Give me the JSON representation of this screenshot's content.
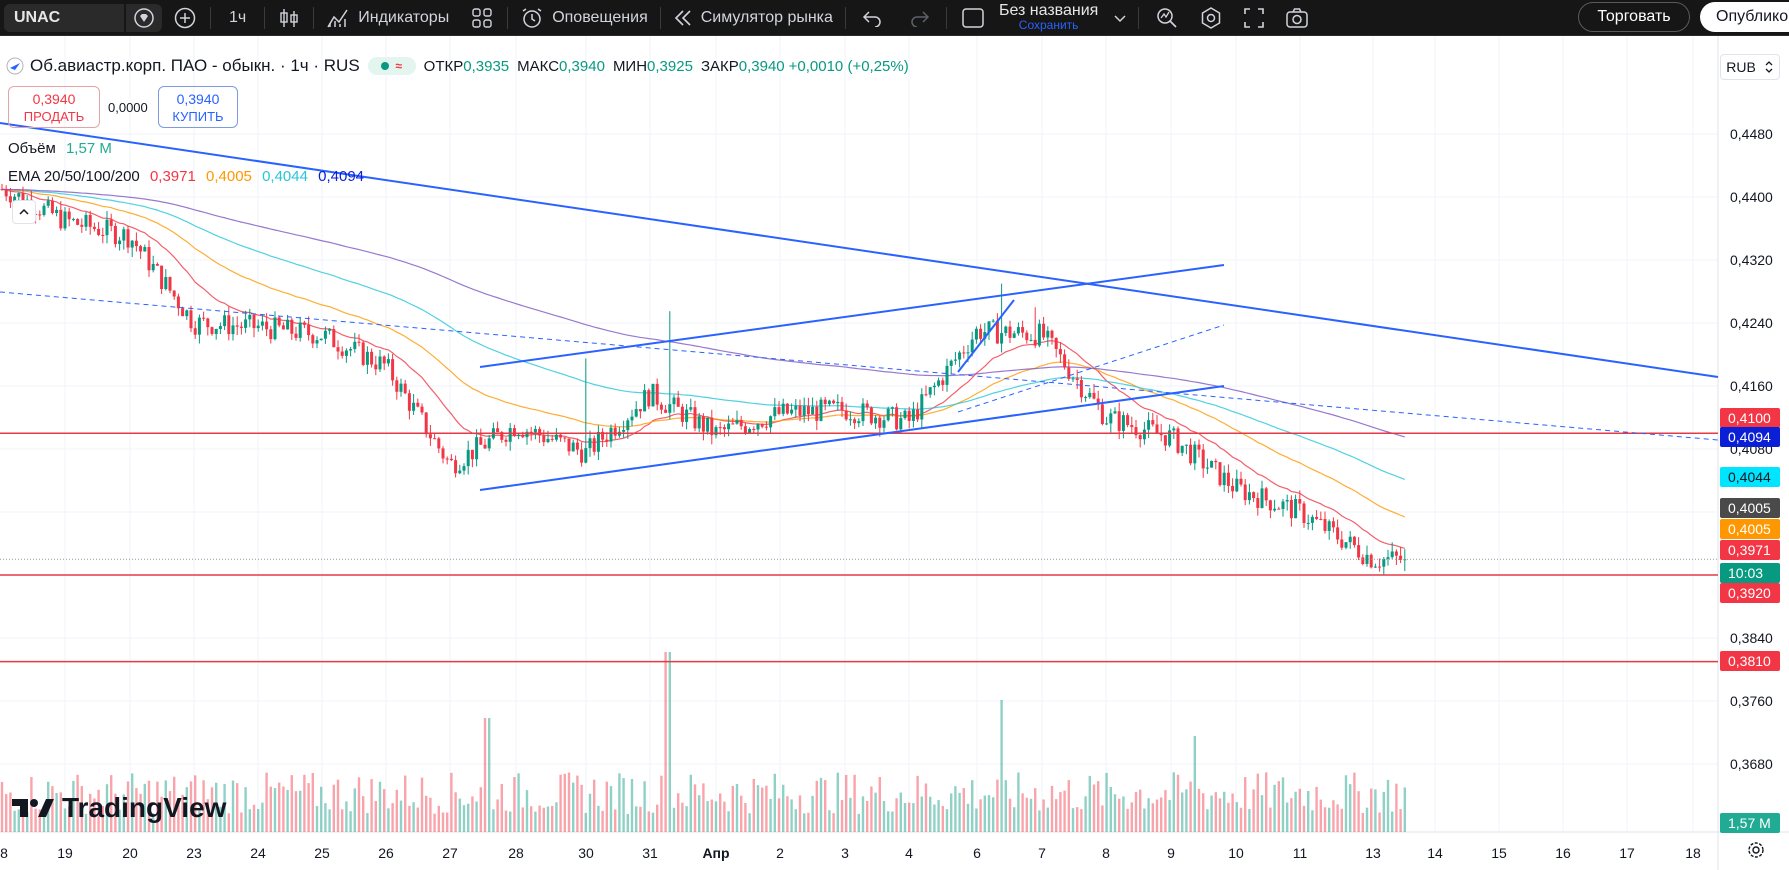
{
  "toolbar": {
    "symbol": "UNAC",
    "interval": "1ч",
    "indicators_label": "Индикаторы",
    "alerts_label": "Оповещения",
    "replay_label": "Симулятор рынка",
    "layout_name": "Без названия",
    "layout_save": "Сохранить",
    "trade_label": "Торговать",
    "publish_label": "Опубликовать"
  },
  "legend": {
    "title": "Об.авиастр.корп. ПАО - обыкн. · 1ч · RUS",
    "open_label": "ОТКР",
    "open": "0,3935",
    "high_label": "МАКС",
    "high": "0,3940",
    "low_label": "МИН",
    "low": "0,3925",
    "close_label": "ЗАКР",
    "close": "0,3940",
    "change": "+0,0010 (+0,25%)",
    "market_status_icon": "≈"
  },
  "trade": {
    "sell_price": "0,3940",
    "sell_label": "ПРОДАТЬ",
    "spread": "0,0000",
    "buy_price": "0,3940",
    "buy_label": "КУПИТЬ"
  },
  "volume_legend": {
    "label": "Объём",
    "value": "1,57 M"
  },
  "ema_legend": {
    "label": "EMA 20/50/100/200",
    "v20": "0,3971",
    "v50": "0,4005",
    "v100": "0,4044",
    "v200": "0,4094"
  },
  "currency": "RUB",
  "watermark": "TradingView",
  "colors": {
    "ema20": "#f23645",
    "ema50": "#ff9800",
    "ema100": "#26c6da",
    "ema200": "#7e57c2",
    "up": "#089981",
    "down": "#f23645",
    "trend": "#2962ff",
    "hline": "#e33a45"
  },
  "price_scale": {
    "ticks": [
      "0,4480",
      "0,4400",
      "0,4320",
      "0,4240",
      "0,4160",
      "0,4080",
      "0,3840",
      "0,3760",
      "0,3680"
    ],
    "labels": [
      {
        "text": "0,4100",
        "bg": "#f23645",
        "fg": "#ffffff"
      },
      {
        "text": "0,4094",
        "bg": "#0a1fd6",
        "fg": "#ffffff"
      },
      {
        "text": "0,4044",
        "bg": "#00e5ff",
        "fg": "#131722"
      },
      {
        "text": "0,4005",
        "bg": "#4a4a4a",
        "fg": "#ffffff"
      },
      {
        "text": "0,4005",
        "bg": "#ff9800",
        "fg": "#ffffff"
      },
      {
        "text": "0,3971",
        "bg": "#f23645",
        "fg": "#ffffff"
      },
      {
        "text": "10:03",
        "bg": "#089981",
        "fg": "#ffffff"
      },
      {
        "text": "0,3920",
        "bg": "#f23645",
        "fg": "#ffffff"
      },
      {
        "text": "0,3810",
        "bg": "#f23645",
        "fg": "#ffffff"
      },
      {
        "text": "1,57 M",
        "bg": "#22ab94",
        "fg": "#ffffff"
      }
    ]
  },
  "time_axis": [
    "8",
    "19",
    "20",
    "23",
    "24",
    "25",
    "26",
    "27",
    "28",
    "30",
    "31",
    "Апр",
    "2",
    "3",
    "4",
    "6",
    "7",
    "8",
    "9",
    "10",
    "11",
    "13",
    "14",
    "15",
    "16",
    "17",
    "18"
  ],
  "chart_data": {
    "type": "candlestick",
    "timeframe": "1ч",
    "last_price": 0.394,
    "ylim": [
      0.364,
      0.452
    ],
    "horizontal_lines": [
      0.41,
      0.392,
      0.381
    ],
    "ema_last": {
      "ema20": 0.3971,
      "ema50": 0.4005,
      "ema100": 0.4044,
      "ema200": 0.4094
    },
    "close_path": [
      {
        "t": "8",
        "c": 0.441
      },
      {
        "t": "19",
        "c": 0.437
      },
      {
        "t": "20",
        "c": 0.435
      },
      {
        "t": "23",
        "c": 0.424
      },
      {
        "t": "24",
        "c": 0.4235
      },
      {
        "t": "25",
        "c": 0.4225
      },
      {
        "t": "26",
        "c": 0.4185
      },
      {
        "t": "27",
        "c": 0.406
      },
      {
        "t": "28",
        "c": 0.411
      },
      {
        "t": "30",
        "c": 0.4075
      },
      {
        "t": "31",
        "c": 0.415
      },
      {
        "t": "Апр",
        "c": 0.41
      },
      {
        "t": "2",
        "c": 0.4125
      },
      {
        "t": "3",
        "c": 0.413
      },
      {
        "t": "4",
        "c": 0.4115
      },
      {
        "t": "6",
        "c": 0.423
      },
      {
        "t": "7",
        "c": 0.4225
      },
      {
        "t": "8",
        "c": 0.412
      },
      {
        "t": "9",
        "c": 0.4095
      },
      {
        "t": "10",
        "c": 0.403
      },
      {
        "t": "11",
        "c": 0.4
      },
      {
        "t": "13",
        "c": 0.394
      }
    ]
  }
}
